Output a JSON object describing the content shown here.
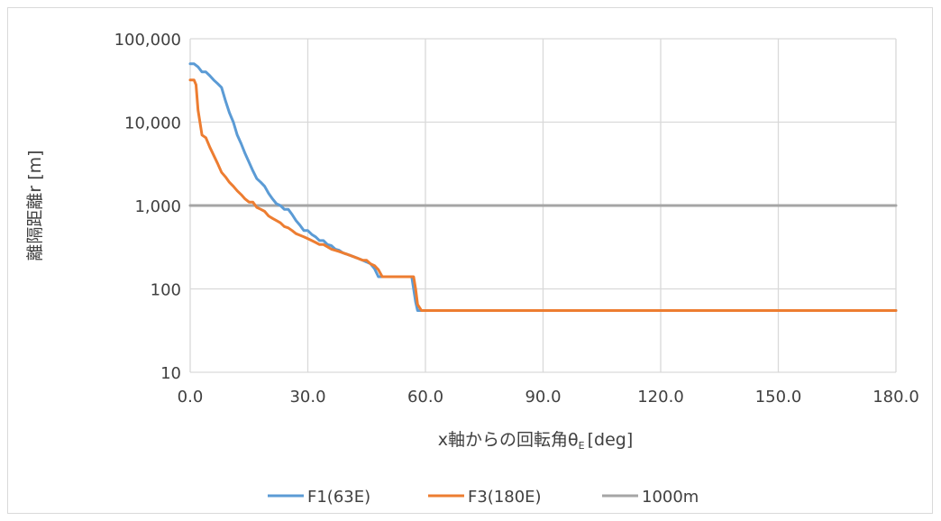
{
  "chart_data": {
    "type": "line",
    "xlabel_main": "x軸からの回転角θ",
    "xlabel_sub": "E",
    "xlabel_unit": "[deg]",
    "ylabel": "離隔距離r [m]",
    "yscale": "log",
    "xlim": [
      0,
      180
    ],
    "ylim": [
      10,
      100000
    ],
    "x_ticks": [
      "0.0",
      "30.0",
      "60.0",
      "90.0",
      "120.0",
      "150.0",
      "180.0"
    ],
    "x_tick_values": [
      0,
      30,
      60,
      90,
      120,
      150,
      180
    ],
    "y_ticks": [
      "10",
      "100",
      "1,000",
      "10,000",
      "100,000"
    ],
    "y_tick_values": [
      10,
      100,
      1000,
      10000,
      100000
    ],
    "grid": true,
    "legend_position": "bottom",
    "series": [
      {
        "name": "F1(63E)",
        "color": "#5b9bd5",
        "x": [
          0,
          1,
          2,
          3,
          4,
          5,
          6,
          7,
          8,
          9,
          10,
          11,
          12,
          13,
          14,
          15,
          16,
          17,
          18,
          19,
          20,
          21,
          22,
          23,
          24,
          25,
          26,
          27,
          28,
          29,
          30,
          31,
          32,
          33,
          34,
          35,
          36,
          37,
          38,
          39,
          40,
          41,
          42,
          43,
          44,
          45,
          46,
          47,
          48,
          48.5,
          49,
          50,
          51,
          52,
          53,
          54,
          55,
          56,
          56.5,
          57,
          57.5,
          58,
          59,
          60,
          70,
          90,
          120,
          150,
          180
        ],
        "values": [
          50000,
          50000,
          46000,
          40000,
          40000,
          36000,
          32000,
          29000,
          26000,
          18000,
          13000,
          10000,
          7000,
          5500,
          4200,
          3300,
          2600,
          2100,
          1900,
          1700,
          1400,
          1200,
          1050,
          1000,
          900,
          900,
          780,
          660,
          580,
          500,
          500,
          450,
          420,
          380,
          380,
          340,
          330,
          300,
          290,
          270,
          260,
          250,
          240,
          230,
          220,
          210,
          200,
          175,
          140,
          140,
          140,
          140,
          140,
          140,
          140,
          140,
          140,
          140,
          140,
          100,
          70,
          55,
          55,
          55,
          55,
          55,
          55,
          55,
          55
        ]
      },
      {
        "name": "F3(180E)",
        "color": "#ed7d31",
        "x": [
          0,
          1,
          1.5,
          2,
          3,
          4,
          5,
          6,
          7,
          8,
          9,
          10,
          11,
          12,
          13,
          14,
          15,
          16,
          17,
          18,
          19,
          20,
          21,
          22,
          23,
          24,
          25,
          26,
          27,
          28,
          29,
          30,
          31,
          32,
          33,
          34,
          35,
          36,
          37,
          38,
          39,
          40,
          41,
          42,
          43,
          44,
          45,
          46,
          47,
          48,
          49,
          50,
          51,
          52,
          53,
          54,
          55,
          56,
          57,
          57.5,
          58,
          59,
          60,
          70,
          90,
          120,
          150,
          180
        ],
        "values": [
          32000,
          32000,
          28000,
          14000,
          7000,
          6500,
          5000,
          4000,
          3200,
          2500,
          2200,
          1900,
          1700,
          1500,
          1350,
          1200,
          1100,
          1100,
          950,
          900,
          850,
          750,
          700,
          660,
          620,
          560,
          540,
          500,
          460,
          440,
          420,
          400,
          380,
          360,
          340,
          340,
          320,
          300,
          290,
          280,
          270,
          260,
          250,
          240,
          230,
          220,
          220,
          200,
          190,
          170,
          140,
          140,
          140,
          140,
          140,
          140,
          140,
          140,
          140,
          100,
          65,
          55,
          55,
          55,
          55,
          55,
          55,
          55
        ]
      },
      {
        "name": "1000m",
        "color": "#a5a5a5",
        "x": [
          0,
          180
        ],
        "values": [
          1000,
          1000
        ]
      }
    ]
  }
}
